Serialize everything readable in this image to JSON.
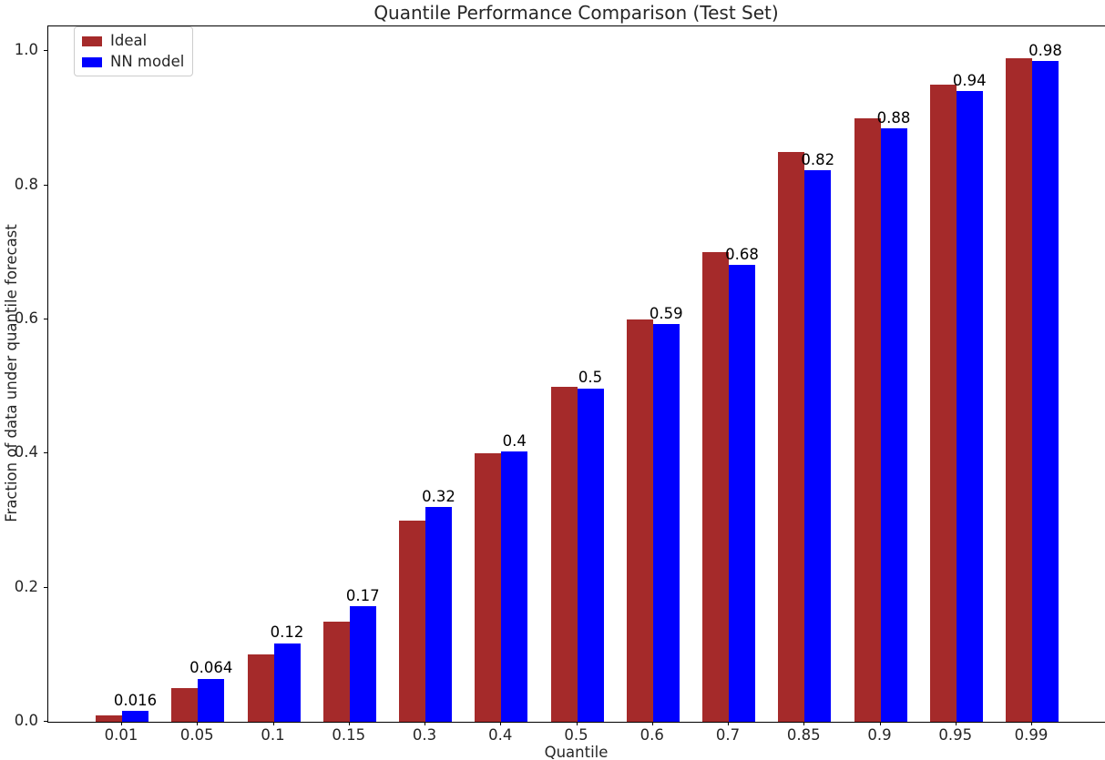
{
  "chart_data": {
    "type": "bar",
    "title": "Quantile Performance Comparison (Test Set)",
    "xlabel": "Quantile",
    "ylabel": "Fraction of data under quantile forecast",
    "categories": [
      "0.01",
      "0.05",
      "0.1",
      "0.15",
      "0.3",
      "0.4",
      "0.5",
      "0.6",
      "0.7",
      "0.85",
      "0.9",
      "0.95",
      "0.99"
    ],
    "series": [
      {
        "name": "Ideal",
        "color": "#a52a2a",
        "values": [
          0.01,
          0.05,
          0.1,
          0.15,
          0.3,
          0.4,
          0.5,
          0.6,
          0.7,
          0.85,
          0.9,
          0.95,
          0.99
        ]
      },
      {
        "name": "NN model",
        "color": "#0000ff",
        "values": [
          0.016,
          0.064,
          0.117,
          0.172,
          0.32,
          0.403,
          0.497,
          0.593,
          0.681,
          0.822,
          0.885,
          0.94,
          0.985
        ],
        "labels": [
          "0.016",
          "0.064",
          "0.12",
          "0.17",
          "0.32",
          "0.4",
          "0.5",
          "0.59",
          "0.68",
          "0.82",
          "0.88",
          "0.94",
          "0.98"
        ]
      }
    ],
    "ylim": [
      0,
      1.037
    ],
    "yticks": [
      "0.0",
      "0.2",
      "0.4",
      "0.6",
      "0.8",
      "1.0"
    ],
    "legend_position": "upper left",
    "grid": false
  }
}
